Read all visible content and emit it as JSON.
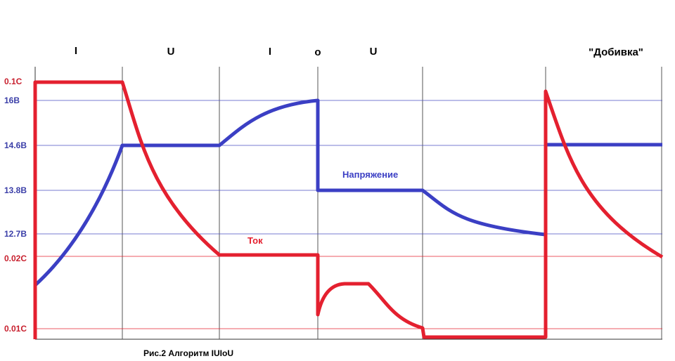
{
  "chart_data": {
    "type": "line",
    "caption": "Рис.2 Алгоритм IUIoU",
    "phase_labels": [
      "I",
      "U",
      "I",
      "o",
      "U",
      "\"Добивка\""
    ],
    "voltage_ticks": [
      "16В",
      "14.6В",
      "13.8В",
      "12.7В"
    ],
    "current_ticks": [
      "0.1C",
      "0.02C",
      "0.01C"
    ],
    "series": [
      {
        "name": "Напряжение",
        "color": "#3b3fc4"
      },
      {
        "name": "Ток",
        "color": "#e4202f"
      }
    ],
    "grid": true
  }
}
